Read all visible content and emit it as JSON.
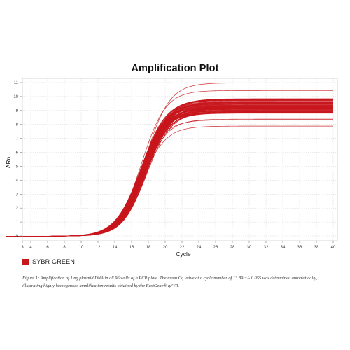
{
  "chart_data": {
    "type": "line",
    "title": "Amplification Plot",
    "xlabel": "Cycle",
    "ylabel": "ΔRn",
    "xlim": [
      3,
      40.5
    ],
    "ylim": [
      -0.35,
      11.3
    ],
    "xticks": [
      3,
      4,
      6,
      8,
      10,
      12,
      14,
      16,
      18,
      20,
      22,
      24,
      26,
      28,
      30,
      32,
      34,
      36,
      38,
      40
    ],
    "yticks": [
      0,
      1,
      2,
      3,
      4,
      5,
      6,
      7,
      8,
      9,
      10,
      11
    ],
    "grid": true,
    "legend_position": "bottom-left",
    "series_color": "#c8161d",
    "series": [
      {
        "name": "SYBR GREEN",
        "x_start": 1.0,
        "x_end": 40,
        "count": 96,
        "baseline": -0.02,
        "plateau_min": 7.9,
        "plateau_max": 11.0,
        "plateau_typical": [
          8.8,
          9.9
        ],
        "midpoint_cycle": 17.4,
        "slope": 1.45,
        "mean_cq": 13.89,
        "cq_sd": 0.055
      }
    ]
  },
  "legend": {
    "label": "SYBR GREEN"
  },
  "caption": {
    "text": "Figure 1: Amplification of 1 ng plasmid DNA in all 96 wells of a PCR plate. The mean Cq value at a cycle number of 13.89 +/- 0.055 was determined automatically, illustrating highly homogenous amplification results obtained by the FastGene® qFYR."
  }
}
